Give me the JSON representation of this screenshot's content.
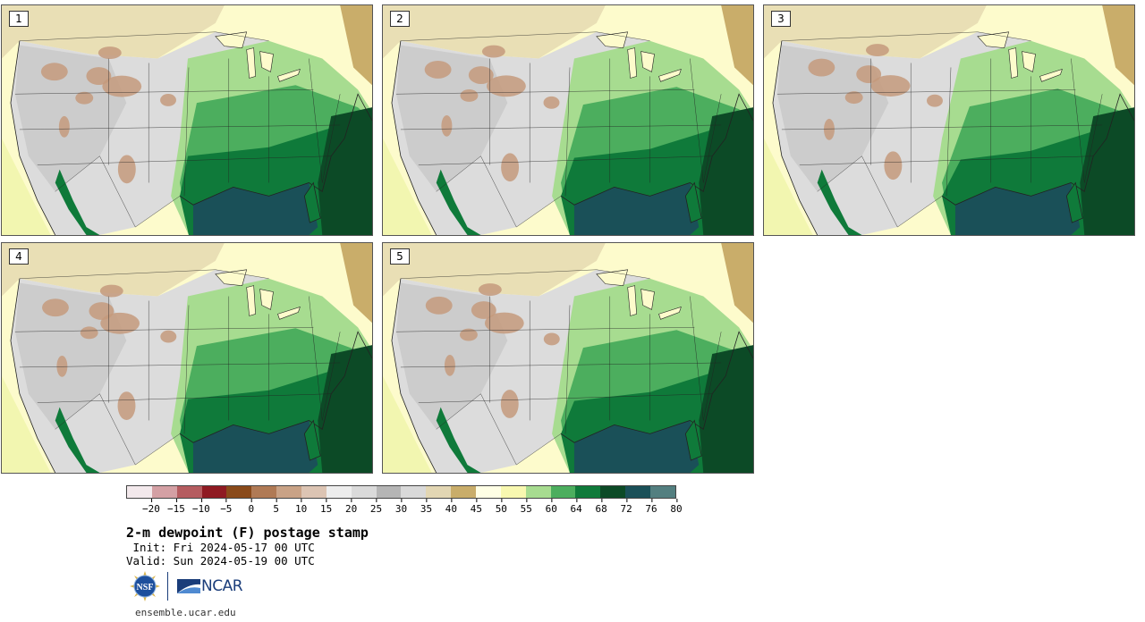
{
  "panels": [
    {
      "label": "1",
      "variant": 0
    },
    {
      "label": "2",
      "variant": 1
    },
    {
      "label": "3",
      "variant": 2
    },
    {
      "label": "4",
      "variant": 3
    },
    {
      "label": "5",
      "variant": 4
    }
  ],
  "colorbar": {
    "colors": [
      "#f3e9ec",
      "#d4a0a4",
      "#b55c60",
      "#8f1a22",
      "#8a4a1a",
      "#b07a55",
      "#c9a286",
      "#dcc4b3",
      "#ededed",
      "#dadada",
      "#b5b5b5",
      "#d9d9d9",
      "#e2d6b3",
      "#c9ad6a",
      "#ffffe5",
      "#f8f8b0",
      "#a7dc90",
      "#4cae5e",
      "#0f7a3a",
      "#0c4a26",
      "#1a5058",
      "#537f80"
    ],
    "ticks": [
      "−20",
      "−15",
      "−10",
      "−5",
      "0",
      "5",
      "10",
      "15",
      "20",
      "25",
      "30",
      "35",
      "40",
      "45",
      "50",
      "55",
      "60",
      "64",
      "68",
      "72",
      "76",
      "80"
    ]
  },
  "title": "2-m dewpoint (F) postage stamp",
  "init": " Init: Fri 2024-05-17 00 UTC",
  "valid": "Valid: Sun 2024-05-19 00 UTC",
  "logos": {
    "nsf": "NSF",
    "ncar": "NCAR"
  },
  "website": "ensemble.ucar.edu",
  "map_colors": {
    "ocean_pacific": "#fdfbcc",
    "ocean_pacific_far": "#f2f6b0",
    "canada_tan": "#e9dfb5",
    "plains_gray": "#dcdcdc",
    "mountain_gray": "#c0c0c0",
    "dry_brown": "#c49a7c",
    "moist_light": "#a7dc90",
    "moist_mid": "#4cae5e",
    "moist_dark": "#0f7a3a",
    "gulf": "#1a5058",
    "atlantic_dark": "#0c4a26",
    "border_line": "#222222"
  }
}
